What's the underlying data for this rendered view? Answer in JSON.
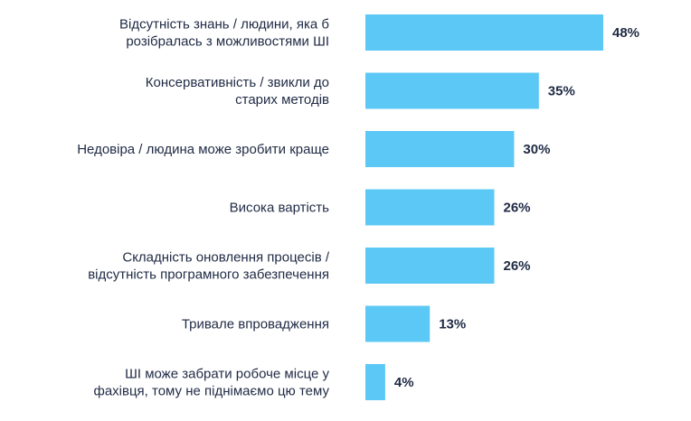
{
  "chart_data": {
    "type": "bar",
    "orientation": "horizontal",
    "title": "",
    "xlabel": "",
    "ylabel": "",
    "xlim": [
      0,
      48
    ],
    "grid": false,
    "legend": "none",
    "bar_color": "#5bc8f5",
    "text_color": "#1f2a44",
    "value_suffix": "%",
    "categories": [
      [
        "Відсутність знань / людини, яка б",
        "розібралась з можливостями ШІ"
      ],
      [
        "Консервативність / звикли до",
        "старих методів"
      ],
      [
        "Недовіра / людина може зробити краще"
      ],
      [
        "Висока вартість"
      ],
      [
        "Складність оновлення процесів /",
        "відсутність програмного забезпечення"
      ],
      [
        "Тривале впровадження"
      ],
      [
        "ШІ може забрати робоче місце у",
        "фахівця, тому не піднімаємо цю тему"
      ]
    ],
    "values": [
      48,
      35,
      30,
      26,
      26,
      13,
      4
    ],
    "value_labels": [
      "48%",
      "35%",
      "30%",
      "26%",
      "26%",
      "13%",
      "4%"
    ]
  }
}
